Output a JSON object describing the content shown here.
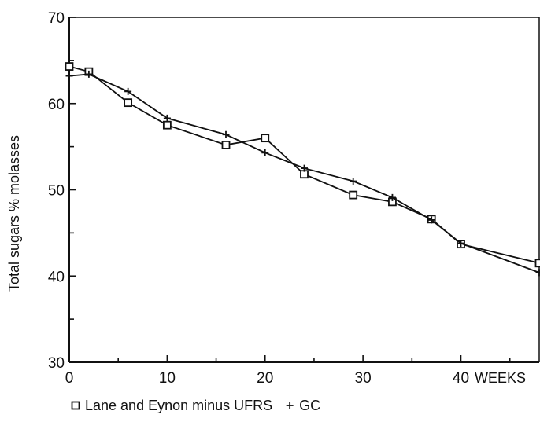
{
  "chart_data": {
    "type": "line",
    "title": "",
    "xlabel": "WEEKS",
    "ylabel": "Total sugars % molasses",
    "xlim": [
      0,
      48
    ],
    "ylim": [
      30,
      70
    ],
    "x_ticks": [
      0,
      10,
      20,
      30,
      40
    ],
    "y_ticks": [
      30,
      40,
      50,
      60,
      70
    ],
    "grid": false,
    "legend_position": "bottom",
    "series": [
      {
        "name": "Lane and Eynon minus UFRS",
        "marker": "open-square",
        "color": "#111111",
        "x": [
          0,
          2,
          6,
          10,
          16,
          20,
          24,
          29,
          33,
          37,
          40,
          48
        ],
        "y": [
          64.3,
          63.7,
          60.1,
          57.5,
          55.2,
          56.0,
          51.8,
          49.4,
          48.6,
          46.6,
          43.7,
          41.5
        ]
      },
      {
        "name": "GC",
        "marker": "plus",
        "color": "#111111",
        "x": [
          0,
          2,
          6,
          10,
          16,
          20,
          24,
          29,
          33,
          37,
          40,
          48
        ],
        "y": [
          63.2,
          63.4,
          61.4,
          58.3,
          56.4,
          54.3,
          52.5,
          51.0,
          49.1,
          46.5,
          43.8,
          40.4
        ]
      }
    ]
  }
}
